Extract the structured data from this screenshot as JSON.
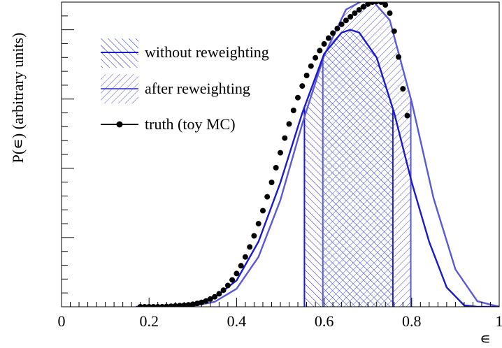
{
  "chart_data": {
    "type": "line",
    "title": "",
    "xlabel": "∊",
    "ylabel": "P(∊) (arbitrary units)",
    "xlim": [
      0,
      1
    ],
    "ylim": [
      0,
      1.1
    ],
    "x_ticks": [
      0,
      0.2,
      0.4,
      0.6,
      0.8,
      1
    ],
    "x_tick_labels": [
      "0",
      "0.2",
      "0.4",
      "0.6",
      "0.8",
      "1"
    ],
    "y_ticks": [
      0.25,
      0.5,
      0.75,
      1.0
    ],
    "y_tick_labels_shown": false,
    "grid": false,
    "legend_position": "top-left",
    "series": [
      {
        "name": "without reweighting",
        "style": "line with hatched band",
        "color": "#1a1acc",
        "peak_x": 0.66,
        "peak_y": 1.0,
        "band": [
          0.555,
          0.757
        ],
        "x": [
          0.17,
          0.2,
          0.25,
          0.3,
          0.35,
          0.4,
          0.45,
          0.5,
          0.55,
          0.6,
          0.64,
          0.66,
          0.68,
          0.72,
          0.76,
          0.8,
          0.84,
          0.88,
          0.92,
          0.95,
          1.0
        ],
        "values": [
          0.0,
          0.0,
          0.004,
          0.012,
          0.034,
          0.095,
          0.235,
          0.448,
          0.699,
          0.913,
          0.99,
          1.0,
          0.99,
          0.9,
          0.7,
          0.45,
          0.235,
          0.07,
          0.005,
          0.0,
          0.0
        ]
      },
      {
        "name": "after reweighting",
        "style": "line with hatched band",
        "color": "#5a5ad6",
        "peak_x": 0.705,
        "peak_y": 1.115,
        "band": [
          0.597,
          0.798
        ],
        "x": [
          0.17,
          0.2,
          0.25,
          0.3,
          0.35,
          0.4,
          0.45,
          0.5,
          0.55,
          0.6,
          0.65,
          0.7,
          0.705,
          0.75,
          0.8,
          0.85,
          0.9,
          0.95,
          1.0
        ],
        "values": [
          0.0,
          0.0,
          0.0,
          0.003,
          0.018,
          0.065,
          0.18,
          0.385,
          0.66,
          0.907,
          1.073,
          1.115,
          1.115,
          1.035,
          0.74,
          0.392,
          0.135,
          0.02,
          0.0
        ]
      },
      {
        "name": "truth (toy MC)",
        "style": "markers",
        "color": "#000000",
        "x": [
          0.18,
          0.19,
          0.2,
          0.21,
          0.22,
          0.23,
          0.24,
          0.25,
          0.26,
          0.27,
          0.28,
          0.29,
          0.3,
          0.31,
          0.32,
          0.33,
          0.34,
          0.35,
          0.36,
          0.37,
          0.38,
          0.39,
          0.4,
          0.41,
          0.42,
          0.43,
          0.44,
          0.45,
          0.46,
          0.47,
          0.48,
          0.49,
          0.5,
          0.51,
          0.52,
          0.53,
          0.54,
          0.55,
          0.56,
          0.57,
          0.58,
          0.59,
          0.6,
          0.61,
          0.62,
          0.63,
          0.64,
          0.65,
          0.66,
          0.67,
          0.68,
          0.69,
          0.7,
          0.71,
          0.72,
          0.73,
          0.74,
          0.75,
          0.76,
          0.77,
          0.78,
          0.79
        ],
        "values": [
          0.0,
          0.0,
          0.0,
          0.0,
          0.0,
          0.0,
          0.001,
          0.002,
          0.003,
          0.004,
          0.005,
          0.007,
          0.009,
          0.012,
          0.016,
          0.021,
          0.028,
          0.036,
          0.047,
          0.06,
          0.077,
          0.097,
          0.12,
          0.148,
          0.18,
          0.216,
          0.256,
          0.3,
          0.347,
          0.397,
          0.449,
          0.502,
          0.556,
          0.609,
          0.66,
          0.709,
          0.755,
          0.797,
          0.835,
          0.869,
          0.899,
          0.925,
          0.949,
          0.97,
          0.988,
          1.005,
          1.02,
          1.034,
          1.047,
          1.06,
          1.072,
          1.083,
          1.093,
          1.1,
          1.102,
          1.1,
          1.09,
          1.06,
          0.995,
          0.902,
          0.787,
          0.69
        ]
      }
    ]
  }
}
